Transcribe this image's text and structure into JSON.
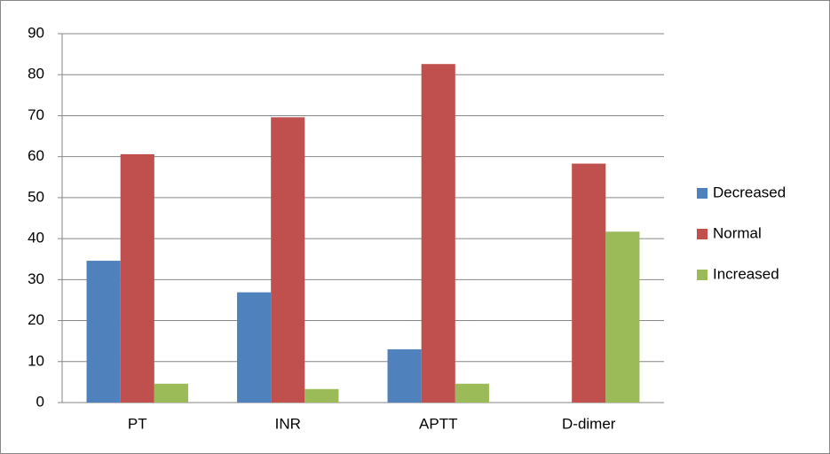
{
  "chart_data": {
    "type": "bar",
    "categories": [
      "PT",
      "INR",
      "APTT",
      "D-dimer"
    ],
    "series": [
      {
        "name": "Decreased",
        "color": "#4f81bd",
        "values": [
          34.6,
          26.9,
          13,
          0
        ]
      },
      {
        "name": "Normal",
        "color": "#c0504d",
        "values": [
          60.6,
          69.6,
          82.6,
          58.3
        ]
      },
      {
        "name": "Increased",
        "color": "#9bbb59",
        "values": [
          4.6,
          3.3,
          4.6,
          41.7
        ]
      }
    ],
    "ylim": [
      0,
      90
    ],
    "yticks": [
      0,
      10,
      20,
      30,
      40,
      50,
      60,
      70,
      80,
      90
    ],
    "grid": true,
    "legend": "right"
  }
}
